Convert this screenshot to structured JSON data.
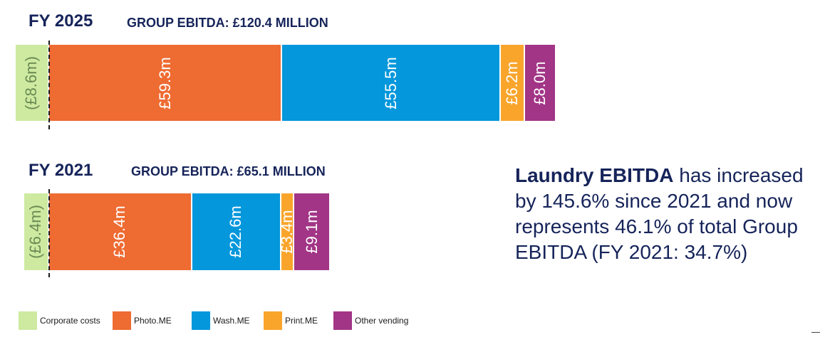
{
  "chart_data": [
    {
      "type": "bar",
      "title": "FY 2025",
      "subtitle": "GROUP EBITDA: £120.4 MILLION",
      "categories": [
        "Corporate costs",
        "Photo.ME",
        "Wash.ME",
        "Print.ME",
        "Other vending"
      ],
      "values": [
        -8.6,
        59.3,
        55.5,
        6.2,
        8.0
      ],
      "labels": [
        "(£8.6m)",
        "£59.3m",
        "£55.5m",
        "£6.2m",
        "£8.0m"
      ]
    },
    {
      "type": "bar",
      "title": "FY 2021",
      "subtitle": "GROUP EBITDA: £65.1 MILLION",
      "categories": [
        "Corporate costs",
        "Photo.ME",
        "Wash.ME",
        "Print.ME",
        "Other vending"
      ],
      "values": [
        -6.4,
        36.4,
        22.6,
        3.4,
        9.1
      ],
      "labels": [
        "(£6.4m)",
        "£36.4m",
        "£22.6m",
        "£3.4m",
        "£9.1m"
      ]
    }
  ],
  "colors": {
    "Corporate costs": "#cdeaa0",
    "Photo.ME": "#ee6b32",
    "Wash.ME": "#0597dc",
    "Print.ME": "#f9a52c",
    "Other vending": "#a23586"
  },
  "callout": {
    "bold": "Laundry EBITDA",
    "rest": " has increased by 145.6% since 2021 and now represents 46.1% of total Group EBITDA (FY 2021: 34.7%)"
  },
  "legend": [
    {
      "label": "Corporate costs",
      "color": "#cdeaa0"
    },
    {
      "label": "Photo.ME",
      "color": "#ee6b32"
    },
    {
      "label": "Wash.ME",
      "color": "#0597dc"
    },
    {
      "label": "Print.ME",
      "color": "#f9a52c"
    },
    {
      "label": "Other vending",
      "color": "#a23586"
    }
  ]
}
